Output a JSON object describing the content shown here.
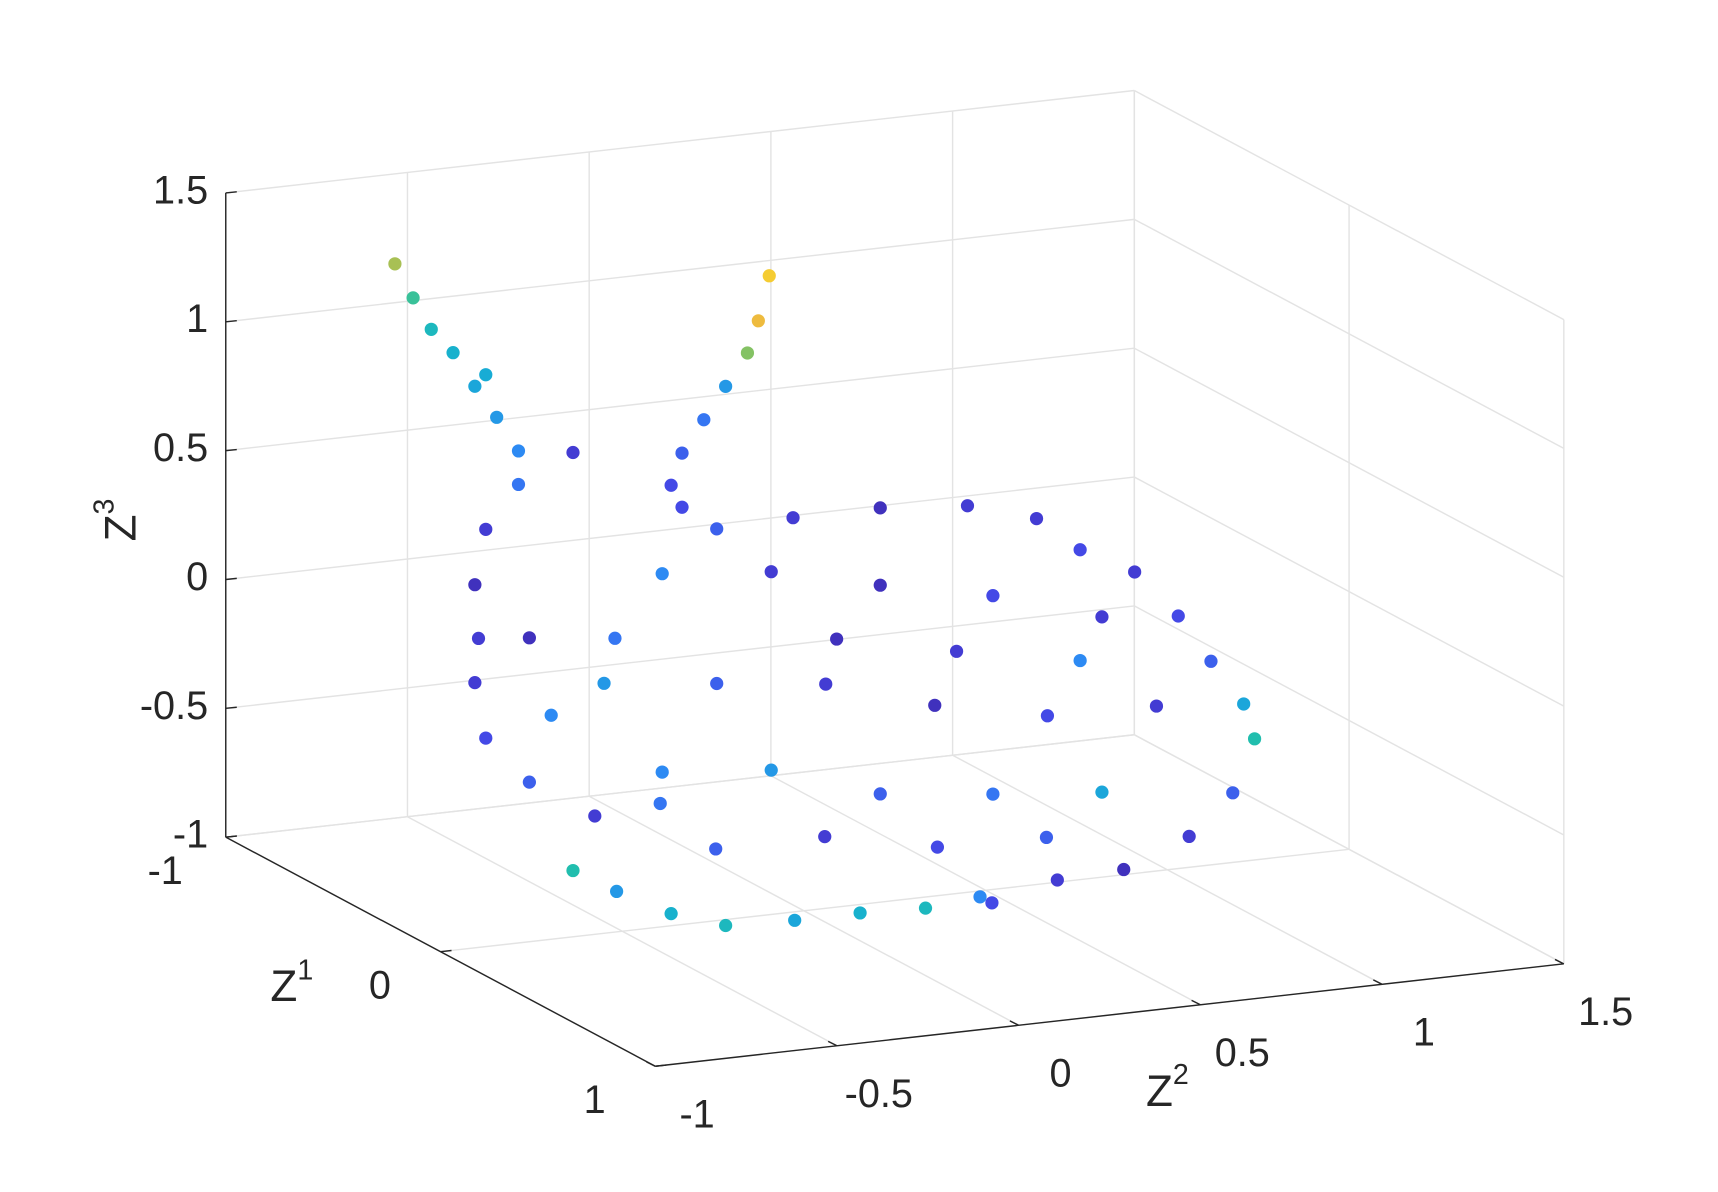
{
  "chart_data": {
    "type": "scatter3",
    "xlabel": {
      "text": "Z",
      "superscript": "1"
    },
    "ylabel": {
      "text": "Z",
      "superscript": "2"
    },
    "zlabel": {
      "text": "Z",
      "superscript": "3"
    },
    "xlim": [
      -1,
      1
    ],
    "ylim": [
      -1,
      1.5
    ],
    "zlim": [
      -1,
      1.5
    ],
    "xticks": [
      -1,
      0,
      1
    ],
    "yticks": [
      -1,
      -0.5,
      0,
      0.5,
      1,
      1.5
    ],
    "zticks": [
      -1,
      -0.5,
      0,
      0.5,
      1,
      1.5
    ],
    "grid": true,
    "colormap": [
      "#3e26a8",
      "#4546e5",
      "#2f86f6",
      "#16aed3",
      "#23c1a8",
      "#8fc25c",
      "#f3bb3c",
      "#f9f21c"
    ],
    "x": [
      -0.5,
      -0.5,
      -0.5,
      -0.5,
      -0.5,
      -0.5,
      -0.5,
      -0.5,
      -0.5,
      -0.5,
      -0.5,
      -0.5,
      -0.5,
      -0.5,
      -0.5,
      -0.5,
      -0.5,
      -0.5,
      -0.5,
      -0.5,
      -0.5,
      -0.5,
      -0.5,
      -0.5,
      -0.5,
      0,
      0,
      0,
      0,
      0,
      0,
      0,
      0,
      0,
      0,
      0,
      0,
      0,
      0,
      0.3,
      0.3,
      0.6,
      0.6,
      0.6,
      0.6,
      0.6,
      0.6,
      0.6,
      0.6,
      0,
      0,
      0,
      0,
      0,
      0,
      0,
      0,
      0,
      0,
      0,
      0,
      0,
      0,
      0,
      0,
      0.3,
      0.3,
      0.3,
      0.3,
      -0.5,
      -0.5,
      0,
      -0.5,
      0,
      0,
      0
    ],
    "y": [
      -0.83,
      -0.78,
      -0.73,
      -0.67,
      -0.61,
      -0.55,
      -0.49,
      -0.58,
      0.2,
      0.17,
      0.14,
      0.08,
      0.02,
      -0.04,
      -0.07,
      -0.34,
      -0.49,
      -0.58,
      -0.61,
      -0.6,
      -0.61,
      -0.58,
      -0.46,
      -0.28,
      -0.1,
      -0.24,
      -0.03,
      0.21,
      0.45,
      0.64,
      0.76,
      0.91,
      1.03,
      1.12,
      1.21,
      1.24,
      1.18,
      1.06,
      0.88,
      0.52,
      0.34,
      -0.99,
      -0.87,
      -0.72,
      -0.57,
      -0.38,
      -0.2,
      -0.02,
      0.13,
      -0.39,
      -0.09,
      0.21,
      0.52,
      0.82,
      -0.55,
      -0.24,
      0.06,
      0.36,
      0.67,
      0.97,
      -0.39,
      -0.09,
      0.21,
      0.52,
      0.82,
      -0.42,
      -0.12,
      0.19,
      0.49,
      -0.46,
      -0.4,
      -0.52,
      -0.04,
      0.09,
      0.42,
      0.76
    ],
    "z": [
      1.42,
      1.28,
      1.15,
      1.05,
      0.91,
      0.78,
      0.64,
      0.95,
      1.21,
      1.04,
      0.92,
      0.8,
      0.68,
      0.56,
      0.44,
      0.61,
      0.51,
      0.35,
      0.14,
      -0.07,
      -0.24,
      -0.46,
      -0.65,
      -0.81,
      -0.79,
      0.52,
      0.53,
      0.53,
      0.5,
      0.42,
      0.28,
      0.17,
      -0.02,
      -0.21,
      -0.39,
      -0.53,
      -0.73,
      -0.88,
      -0.98,
      -0.83,
      -0.89,
      -0.42,
      -0.52,
      -0.63,
      -0.7,
      -0.71,
      -0.71,
      -0.72,
      -0.7,
      0.37,
      0.33,
      0.23,
      0.14,
      0.01,
      -0.03,
      -0.08,
      -0.13,
      -0.26,
      -0.35,
      -0.36,
      -0.4,
      -0.44,
      -0.58,
      -0.63,
      -0.67,
      -0.56,
      -0.56,
      -0.65,
      -0.66,
      -0.09,
      -0.4,
      0.14,
      0.35,
      0.04,
      -0.06,
      -0.15
    ],
    "c": [
      0.75,
      0.6,
      0.5,
      0.45,
      0.4,
      0.35,
      0.3,
      0.42,
      0.9,
      0.85,
      0.7,
      0.35,
      0.25,
      0.2,
      0.15,
      0.1,
      0.25,
      0.1,
      0.05,
      0.1,
      0.1,
      0.15,
      0.2,
      0.1,
      0.25,
      0.2,
      0.1,
      0.05,
      0.1,
      0.1,
      0.15,
      0.1,
      0.15,
      0.2,
      0.4,
      0.55,
      0.2,
      0.1,
      0.05,
      0.1,
      0.15,
      0.55,
      0.35,
      0.45,
      0.5,
      0.4,
      0.45,
      0.5,
      0.3,
      0.3,
      0.1,
      0.05,
      0.15,
      0.1,
      0.35,
      0.2,
      0.1,
      0.05,
      0.15,
      0.1,
      0.3,
      0.35,
      0.2,
      0.25,
      0.4,
      0.2,
      0.1,
      0.15,
      0.2,
      0.05,
      0.3,
      0.25,
      0.15,
      0.05,
      0.1,
      0.3
    ]
  }
}
